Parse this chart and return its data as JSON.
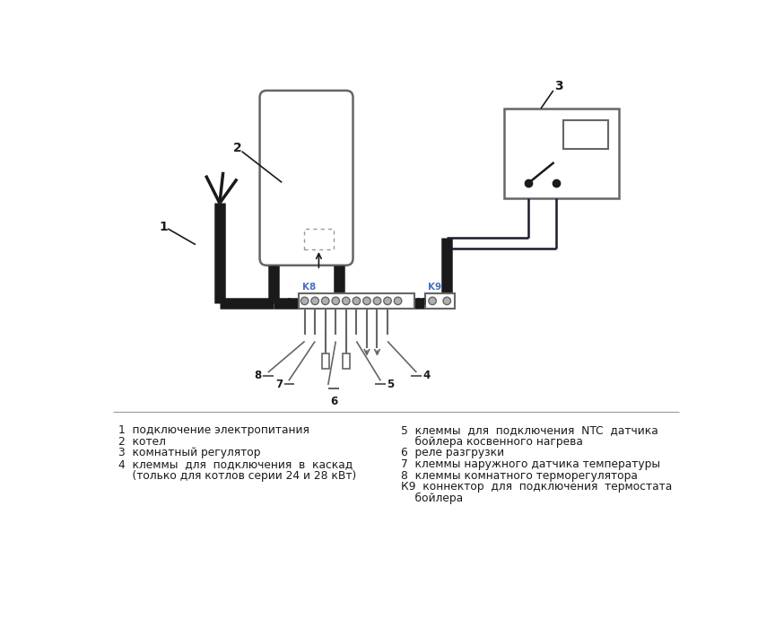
{
  "bg_color": "#ffffff",
  "line_color": "#1a1a1a",
  "blue_color": "#4472c4",
  "wire_color": "#1a1a2e",
  "gray_color": "#666666",
  "legend_left": [
    "1  подключение электропитания",
    "2  котел",
    "3  комнатный регулятор",
    "4  клеммы  для  подключения  в  каскад",
    "    (только для котлов серии 24 и 28 кВт)"
  ],
  "legend_right": [
    "5  клеммы  для  подключения  NTC  датчика",
    "    бойлера косвенного нагрева",
    "6  реле разгрузки",
    "7  клеммы наружного датчика температуры",
    "8  клеммы комнатного терморегулятора",
    "К9  коннектор  для  подключения  термостата",
    "    бойлера"
  ]
}
